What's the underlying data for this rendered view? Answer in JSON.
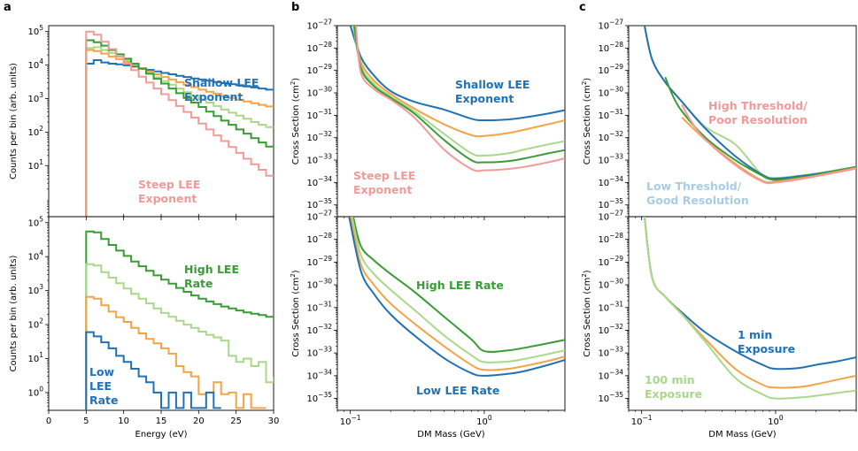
{
  "colors": {
    "blue": "#2171b5",
    "orange": "#f4a346",
    "lightgreen": "#a9d88b",
    "green": "#3a9c34",
    "pink": "#f09b97",
    "lightblue": "#a8cce3"
  },
  "chart_data": [
    {
      "panel": "a",
      "type": "line",
      "subtype": "step",
      "xlabel": "Energy (eV)",
      "ylabel": "Counts per bin (arb. units)",
      "xlim": [
        0,
        30
      ],
      "ylim": [
        0.3,
        150000
      ],
      "yscale": "log",
      "x_ticks": [
        "0",
        "5",
        "10",
        "15",
        "20",
        "25",
        "30"
      ],
      "y_ticks": [
        "10^5",
        "10^4",
        "10^3",
        "10^2",
        "10^1"
      ],
      "annotations": [
        {
          "lines": [
            "Shallow LEE",
            "Exponent"
          ],
          "color": "blue"
        },
        {
          "lines": [
            "Steep LEE",
            "Exponent"
          ],
          "color": "pink"
        }
      ],
      "series": [
        {
          "color": "blue",
          "start": 5,
          "values": [
            11000,
            14000,
            12000,
            11000,
            10500,
            9800,
            9000,
            8000,
            7200,
            6500,
            5800,
            5300,
            4800,
            4400,
            4000,
            3700,
            3400,
            3100,
            2900,
            2700,
            2500,
            2300,
            2150,
            2000,
            1850
          ]
        },
        {
          "color": "orange",
          "start": 5,
          "values": [
            28000,
            26000,
            22000,
            18000,
            15000,
            12500,
            10000,
            8000,
            6500,
            5300,
            4400,
            3700,
            3100,
            2600,
            2200,
            1850,
            1600,
            1400,
            1200,
            1050,
            930,
            820,
            730,
            650,
            580
          ]
        },
        {
          "color": "lightgreen",
          "start": 5,
          "values": [
            32000,
            34000,
            28000,
            23000,
            18000,
            14000,
            10500,
            7800,
            5800,
            4300,
            3300,
            2600,
            2000,
            1550,
            1200,
            950,
            760,
            600,
            470,
            380,
            310,
            250,
            200,
            165,
            140
          ]
        },
        {
          "color": "green",
          "start": 5,
          "values": [
            55000,
            48000,
            38000,
            28000,
            21000,
            15500,
            11000,
            7800,
            5500,
            3900,
            2800,
            2000,
            1450,
            1050,
            760,
            560,
            410,
            300,
            220,
            165,
            120,
            90,
            66,
            49,
            37
          ]
        },
        {
          "color": "pink",
          "start": 5,
          "values": [
            100000,
            80000,
            50000,
            30000,
            18000,
            11000,
            7000,
            4500,
            3000,
            2000,
            1350,
            900,
            600,
            400,
            270,
            180,
            120,
            80,
            54,
            36,
            24,
            16,
            11,
            7.5,
            5
          ]
        }
      ]
    },
    {
      "panel": "a-lower",
      "type": "line",
      "subtype": "step",
      "xlabel": "Energy (eV)",
      "ylabel": "Counts per bin (arb. units)",
      "xlim": [
        0,
        30
      ],
      "ylim": [
        0.3,
        150000
      ],
      "yscale": "log",
      "x_ticks": [
        "0",
        "5",
        "10",
        "15",
        "20",
        "25",
        "30"
      ],
      "y_ticks": [
        "10^5",
        "10^4",
        "10^3",
        "10^2",
        "10^1",
        "10^0"
      ],
      "annotations": [
        {
          "lines": [
            "High LEE",
            "Rate"
          ],
          "color": "green"
        },
        {
          "lines": [
            "Low",
            "LEE",
            "Rate"
          ],
          "color": "blue"
        }
      ],
      "series": [
        {
          "color": "green",
          "start": 5,
          "values": [
            55000,
            52000,
            33000,
            22000,
            15000,
            10500,
            7200,
            5200,
            3800,
            2800,
            2100,
            1600,
            1200,
            920,
            720,
            580,
            480,
            400,
            340,
            300,
            260,
            230,
            210,
            190,
            170
          ]
        },
        {
          "color": "lightgreen",
          "start": 5,
          "values": [
            6000,
            5500,
            3500,
            2400,
            1650,
            1150,
            800,
            580,
            420,
            300,
            220,
            170,
            130,
            100,
            80,
            62,
            50,
            42,
            34,
            12,
            8,
            10,
            6,
            8,
            2,
            3
          ]
        },
        {
          "color": "orange",
          "start": 5,
          "values": [
            650,
            580,
            370,
            240,
            165,
            120,
            80,
            55,
            38,
            28,
            20,
            14,
            6,
            4,
            3,
            0.9,
            1.0,
            2.0,
            0.9,
            1.0,
            0.35,
            0.9,
            0.35,
            0.35
          ]
        },
        {
          "color": "blue",
          "start": 5,
          "values": [
            60,
            45,
            30,
            20,
            12,
            8,
            5,
            3,
            2,
            1,
            0.35,
            1,
            0.35,
            1,
            0.35,
            0.35,
            1,
            0.35
          ]
        }
      ]
    },
    {
      "panel": "b",
      "type": "line",
      "xlabel": "DM Mass (GeV)",
      "ylabel": "Cross Section (cm^2)",
      "xscale": "log",
      "yscale": "log",
      "xlim": [
        0.08,
        4
      ],
      "ylim": [
        3e-36,
        1e-27
      ],
      "y_ticks": [
        "10^-27",
        "10^-28",
        "10^-29",
        "10^-30",
        "10^-31",
        "10^-32",
        "10^-33",
        "10^-34",
        "10^-35"
      ],
      "annotations": [
        {
          "lines": [
            "Shallow LEE",
            "Exponent"
          ],
          "color": "blue"
        },
        {
          "lines": [
            "Steep LEE",
            "Exponent"
          ],
          "color": "pink"
        }
      ],
      "series": [
        {
          "color": "blue",
          "x": [
            0.1,
            0.12,
            0.15,
            0.2,
            0.3,
            0.5,
            0.8,
            1.0,
            1.5,
            2.0,
            3.0,
            4.0
          ],
          "y": [
            1e-27,
            4e-29,
            6e-30,
            1.2e-30,
            4e-31,
            1.8e-31,
            7e-32,
            6e-32,
            6.5e-32,
            8e-32,
            1.2e-31,
            1.7e-31
          ]
        },
        {
          "color": "orange",
          "x": [
            0.105,
            0.12,
            0.15,
            0.2,
            0.3,
            0.5,
            0.8,
            1.0,
            1.5,
            2.0,
            3.0,
            4.0
          ],
          "y": [
            1e-27,
            2.5e-29,
            3.5e-30,
            9e-31,
            2e-31,
            4e-32,
            1.3e-32,
            1.2e-32,
            1.6e-32,
            2.3e-32,
            4e-32,
            6e-32
          ]
        },
        {
          "color": "lightgreen",
          "x": [
            0.105,
            0.12,
            0.15,
            0.2,
            0.3,
            0.5,
            0.8,
            1.0,
            1.5,
            2.0,
            3.0,
            4.0
          ],
          "y": [
            1e-27,
            1.7e-29,
            2.5e-30,
            7e-31,
            1.5e-31,
            1.5e-32,
            2e-33,
            1.6e-33,
            2e-33,
            3e-33,
            5e-33,
            7e-33
          ]
        },
        {
          "color": "green",
          "x": [
            0.107,
            0.12,
            0.15,
            0.2,
            0.3,
            0.5,
            0.8,
            1.0,
            1.5,
            2.0,
            3.0,
            4.0
          ],
          "y": [
            1e-27,
            1.3e-29,
            2e-30,
            6e-31,
            1.2e-31,
            8e-33,
            1e-33,
            8e-34,
            9e-34,
            1.2e-33,
            2e-33,
            2.8e-33
          ]
        },
        {
          "color": "pink",
          "x": [
            0.11,
            0.12,
            0.15,
            0.2,
            0.3,
            0.5,
            0.8,
            1.0,
            1.5,
            2.0,
            3.0,
            4.0
          ],
          "y": [
            1e-27,
            8e-30,
            1.5e-30,
            5e-31,
            8e-32,
            3e-33,
            4e-34,
            3.5e-34,
            4e-34,
            5e-34,
            8e-34,
            1.2e-33
          ]
        }
      ]
    },
    {
      "panel": "b-lower",
      "type": "line",
      "xlabel": "DM Mass (GeV)",
      "ylabel": "Cross Section (cm^2)",
      "xscale": "log",
      "yscale": "log",
      "xlim": [
        0.08,
        4
      ],
      "ylim": [
        3e-36,
        1e-27
      ],
      "x_ticks": [
        "10^-1",
        "10^0"
      ],
      "y_ticks": [
        "10^-27",
        "10^-28",
        "10^-29",
        "10^-30",
        "10^-31",
        "10^-32",
        "10^-33",
        "10^-34",
        "10^-35"
      ],
      "annotations": [
        {
          "lines": [
            "High LEE Rate"
          ],
          "color": "green"
        },
        {
          "lines": [
            "Low LEE Rate"
          ],
          "color": "blue"
        }
      ],
      "series": [
        {
          "color": "green",
          "x": [
            0.105,
            0.12,
            0.15,
            0.2,
            0.3,
            0.5,
            0.8,
            1.0,
            1.5,
            2.0,
            3.0,
            4.0
          ],
          "y": [
            1e-27,
            5e-29,
            1.2e-29,
            3e-30,
            5e-31,
            4e-32,
            4e-33,
            1.2e-33,
            1.3e-33,
            1.7e-33,
            2.7e-33,
            3.8e-33
          ]
        },
        {
          "color": "lightgreen",
          "x": [
            0.103,
            0.12,
            0.15,
            0.2,
            0.3,
            0.5,
            0.8,
            1.0,
            1.5,
            2.0,
            3.0,
            4.0
          ],
          "y": [
            1e-27,
            2e-29,
            3e-30,
            6e-31,
            8e-32,
            6e-33,
            8e-34,
            4e-34,
            4.2e-34,
            5.5e-34,
            9e-34,
            1.3e-33
          ]
        },
        {
          "color": "orange",
          "x": [
            0.1,
            0.12,
            0.15,
            0.2,
            0.3,
            0.5,
            0.8,
            1.0,
            1.5,
            2.0,
            3.0,
            4.0
          ],
          "y": [
            1e-27,
            8e-30,
            1e-30,
            1.5e-31,
            2e-32,
            2e-33,
            3e-34,
            1.8e-34,
            2e-34,
            2.7e-34,
            4.5e-34,
            7e-34
          ]
        },
        {
          "color": "blue",
          "x": [
            0.098,
            0.12,
            0.15,
            0.2,
            0.3,
            0.5,
            0.8,
            1.0,
            1.5,
            2.0,
            3.0,
            4.0
          ],
          "y": [
            1e-27,
            4e-30,
            4e-31,
            5e-32,
            6e-33,
            6e-34,
            1.3e-34,
            1e-34,
            1.2e-34,
            1.6e-34,
            3e-34,
            5e-34
          ]
        }
      ]
    },
    {
      "panel": "c",
      "type": "line",
      "xlabel": "DM Mass (GeV)",
      "ylabel": "Cross Section (cm^2)",
      "xscale": "log",
      "yscale": "log",
      "xlim": [
        0.08,
        4
      ],
      "ylim": [
        3e-36,
        1e-27
      ],
      "y_ticks": [
        "10^-27",
        "10^-28",
        "10^-29",
        "10^-30",
        "10^-31",
        "10^-32",
        "10^-33",
        "10^-34",
        "10^-35"
      ],
      "annotations": [
        {
          "lines": [
            "High Threshold/",
            "Poor Resolution"
          ],
          "color": "pink"
        },
        {
          "lines": [
            "Low Threshold/",
            "Good Resolution"
          ],
          "color": "lightblue"
        }
      ],
      "series": [
        {
          "color": "lightgreen",
          "x": [
            0.105,
            0.12,
            0.15,
            0.2,
            0.3,
            0.5,
            0.8,
            1.0,
            1.5,
            2.0,
            3.0,
            4.0
          ],
          "y": [
            1e-27,
            3e-29,
            3e-30,
            4e-31,
            3e-32,
            5e-33,
            2e-34,
            1.6e-34,
            2e-34,
            2.5e-34,
            3.8e-34,
            5e-34
          ]
        },
        {
          "color": "blue",
          "x": [
            0.105,
            0.12,
            0.15,
            0.2,
            0.3,
            0.5,
            0.8,
            1.0,
            1.5,
            2.0,
            3.0,
            4.0
          ],
          "y": [
            1e-27,
            3e-29,
            3e-30,
            4e-31,
            2.5e-32,
            1.5e-33,
            2.2e-34,
            1.5e-34,
            1.9e-34,
            2.4e-34,
            3.6e-34,
            5e-34
          ]
        },
        {
          "color": "green",
          "x": [
            0.15,
            0.17,
            0.2,
            0.3,
            0.5,
            0.8,
            1.0,
            1.5,
            2.0,
            3.0,
            4.0
          ],
          "y": [
            5e-30,
            8e-31,
            1.5e-31,
            1e-32,
            1e-33,
            2e-34,
            1.3e-34,
            1.7e-34,
            2.2e-34,
            3.5e-34,
            4.8e-34
          ]
        },
        {
          "color": "orange",
          "x": [
            0.2,
            0.3,
            0.5,
            0.8,
            1.0,
            1.5,
            2.0,
            3.0,
            4.0
          ],
          "y": [
            8e-32,
            8e-33,
            7e-34,
            1.2e-34,
            1.1e-34,
            1.5e-34,
            2e-34,
            3.2e-34,
            4.5e-34
          ]
        },
        {
          "color": "pink",
          "x": [
            0.2,
            0.22,
            0.25,
            0.3,
            0.5,
            0.8,
            1.0,
            1.5,
            2.0,
            3.0,
            4.0
          ],
          "y": [
            3e-31,
            1e-31,
            3e-32,
            8e-33,
            6e-34,
            1.1e-34,
            1e-34,
            1.4e-34,
            1.9e-34,
            3e-34,
            4.2e-34
          ]
        }
      ]
    },
    {
      "panel": "c-lower",
      "type": "line",
      "xlabel": "DM Mass (GeV)",
      "ylabel": "Cross Section (cm^2)",
      "xscale": "log",
      "yscale": "log",
      "xlim": [
        0.08,
        4
      ],
      "ylim": [
        3e-36,
        1e-27
      ],
      "x_ticks": [
        "10^-1",
        "10^0"
      ],
      "y_ticks": [
        "10^-27",
        "10^-28",
        "10^-29",
        "10^-30",
        "10^-31",
        "10^-32",
        "10^-33",
        "10^-34",
        "10^-35"
      ],
      "annotations": [
        {
          "lines": [
            "1 min",
            "Exposure"
          ],
          "color": "blue"
        },
        {
          "lines": [
            "100 min",
            "Exposure"
          ],
          "color": "lightgreen"
        }
      ],
      "series": [
        {
          "color": "blue",
          "x": [
            0.105,
            0.12,
            0.15,
            0.2,
            0.3,
            0.5,
            0.8,
            1.0,
            1.5,
            2.0,
            3.0,
            4.0
          ],
          "y": [
            1e-27,
            2e-30,
            3e-31,
            6e-32,
            8e-33,
            1.2e-33,
            3e-34,
            2e-34,
            2.2e-34,
            3e-34,
            4.5e-34,
            6.5e-34
          ]
        },
        {
          "color": "orange",
          "x": [
            0.105,
            0.12,
            0.15,
            0.2,
            0.3,
            0.5,
            0.8,
            1.0,
            1.5,
            2.0,
            3.0,
            4.0
          ],
          "y": [
            1e-27,
            2e-30,
            3e-31,
            5e-32,
            4e-33,
            2e-34,
            4e-35,
            3e-35,
            3.2e-35,
            4.2e-35,
            7e-35,
            1e-34
          ]
        },
        {
          "color": "lightgreen",
          "x": [
            0.105,
            0.12,
            0.15,
            0.2,
            0.3,
            0.5,
            0.8,
            1.0,
            1.5,
            2.0,
            3.0,
            4.0
          ],
          "y": [
            1e-27,
            2e-30,
            3e-31,
            5e-32,
            3e-33,
            8e-35,
            1.5e-35,
            1e-35,
            1.1e-35,
            1.3e-35,
            1.8e-35,
            2.2e-35
          ]
        }
      ]
    }
  ],
  "panel_labels": [
    "a",
    "b",
    "c"
  ]
}
